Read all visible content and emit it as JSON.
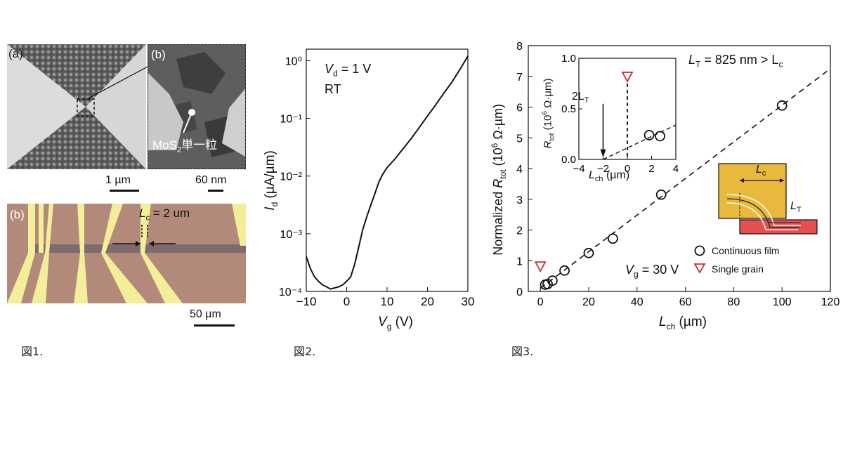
{
  "figure1": {
    "sem_a_label": "(a)",
    "sem_b_label": "(b)",
    "grain_label_pre": "MoS",
    "grain_label_sub": "2",
    "grain_label_post": "単一粒",
    "scale_a": "1 µm",
    "scale_b": "60 nm",
    "optical_label": "(b)",
    "lc_label_main": "L",
    "lc_label_sub": "c",
    "lc_label_tail": " = 2 um",
    "scale_c": "50 µm",
    "caption": "図1."
  },
  "figure2": {
    "caption": "図2.",
    "annotation_vd_main": "V",
    "annotation_vd_sub": "d",
    "annotation_vd_tail": " = 1 V",
    "annotation_rt": "RT",
    "ylabel_main": "I",
    "ylabel_sub": "d",
    "ylabel_tail": " (µA/µm)",
    "xlabel_main": "V",
    "xlabel_sub": "g",
    "xlabel_tail": " (V)"
  },
  "figure3": {
    "caption": "図3.",
    "annotation_lt": "L",
    "annotation_lt_sub": "T",
    "annotation_lt_tail": " = 825 nm > L",
    "annotation_lt_tail_sub": "c",
    "annotation_vg": "V",
    "annotation_vg_sub": "g",
    "annotation_vg_tail": " = 30 V",
    "ylabel_a": "Normalized ",
    "ylabel_b": "R",
    "ylabel_b_sub": "tot",
    "ylabel_c": " (10",
    "ylabel_c_sup": "6",
    "ylabel_d": " Ω·µm)",
    "xlabel_main": "L",
    "xlabel_sub": "ch",
    "xlabel_tail": " (µm)",
    "inset_ylabel_main": "R",
    "inset_ylabel_sub": "tot",
    "inset_ylabel_tail_a": " (10",
    "inset_ylabel_sup": "6",
    "inset_ylabel_tail_b": " Ω·µm)",
    "inset_xlabel_main": "L",
    "inset_xlabel_sub": "ch",
    "inset_xlabel_tail": " (µm)",
    "inset_arrow_label": "2L",
    "inset_arrow_label_sub": "T",
    "schematic_lc": "L",
    "schematic_lc_sub": "c",
    "schematic_lt": "L",
    "schematic_lt_sub": "T",
    "legend_continuous": "Continuous film",
    "legend_single": "Single grain"
  },
  "chart_data": [
    {
      "type": "line",
      "id": "fig2-transfer",
      "title": "",
      "xlabel": "Vg (V)",
      "ylabel": "Id (µA/µm)",
      "xlim": [
        -10,
        30
      ],
      "ylim": [
        0.0001,
        1.5
      ],
      "yscale": "log",
      "xticks": [
        -10,
        0,
        10,
        20,
        30
      ],
      "yticks": [
        0.0001,
        0.001,
        0.01,
        0.1,
        1
      ],
      "ytick_labels": [
        "10⁻⁴",
        "10⁻³",
        "10⁻²",
        "10⁻¹",
        "10⁰"
      ],
      "series": [
        {
          "x": [
            -10,
            -9,
            -8,
            -7,
            -6,
            -5,
            -4,
            -3,
            -2,
            -1,
            0,
            1,
            2,
            3,
            4,
            5,
            6,
            7,
            8,
            9,
            10,
            12,
            14,
            16,
            18,
            20,
            22,
            24,
            26,
            28,
            30
          ],
          "y": [
            0.0004,
            0.00025,
            0.00018,
            0.00015,
            0.00013,
            0.00012,
            0.00011,
            0.000115,
            0.00012,
            0.00013,
            0.00015,
            0.00018,
            0.0003,
            0.0006,
            0.0012,
            0.002,
            0.0032,
            0.005,
            0.008,
            0.011,
            0.014,
            0.02,
            0.03,
            0.045,
            0.07,
            0.11,
            0.17,
            0.27,
            0.42,
            0.7,
            1.2
          ]
        }
      ]
    },
    {
      "type": "scatter",
      "id": "fig3-tlm",
      "title": "",
      "xlabel": "Lch (µm)",
      "ylabel": "Normalized Rtot (10⁶ Ω·µm)",
      "xlim": [
        -5,
        120
      ],
      "ylim": [
        0,
        8
      ],
      "xticks": [
        0,
        20,
        40,
        60,
        80,
        100,
        120
      ],
      "yticks": [
        0,
        1,
        2,
        3,
        4,
        5,
        6,
        7,
        8
      ],
      "series": [
        {
          "name": "Continuous film",
          "marker": "circle",
          "x": [
            2,
            3,
            5,
            10,
            20,
            30,
            50,
            100
          ],
          "y": [
            0.22,
            0.24,
            0.35,
            0.68,
            1.25,
            1.72,
            3.15,
            6.05
          ]
        },
        {
          "name": "Single grain",
          "marker": "triangle-down",
          "color": "#d42a2a",
          "x": [
            0
          ],
          "y": [
            0.82
          ]
        }
      ],
      "fit_line": {
        "style": "dashed",
        "x": [
          0,
          120
        ],
        "y": [
          0.1,
          7.25
        ]
      },
      "legend_position": "lower-right"
    },
    {
      "type": "scatter",
      "id": "fig3-inset",
      "title": "",
      "xlabel": "Lch (µm)",
      "ylabel": "Rtot (10⁶ Ω·µm)",
      "xlim": [
        -4,
        4
      ],
      "ylim": [
        0,
        1.0
      ],
      "xticks": [
        -4,
        -2,
        0,
        2,
        4
      ],
      "yticks": [
        0.0,
        0.5,
        1.0
      ],
      "series": [
        {
          "name": "Continuous film",
          "marker": "circle",
          "x": [
            1.8,
            2.7
          ],
          "y": [
            0.24,
            0.23
          ]
        },
        {
          "name": "Single grain",
          "marker": "triangle-down",
          "color": "#d42a2a",
          "x": [
            0
          ],
          "y": [
            0.82
          ]
        }
      ],
      "fit_line": {
        "style": "dashed",
        "x": [
          -2,
          4
        ],
        "y": [
          0.0,
          0.34
        ]
      },
      "vline": {
        "x": 0,
        "style": "dashed"
      }
    }
  ]
}
